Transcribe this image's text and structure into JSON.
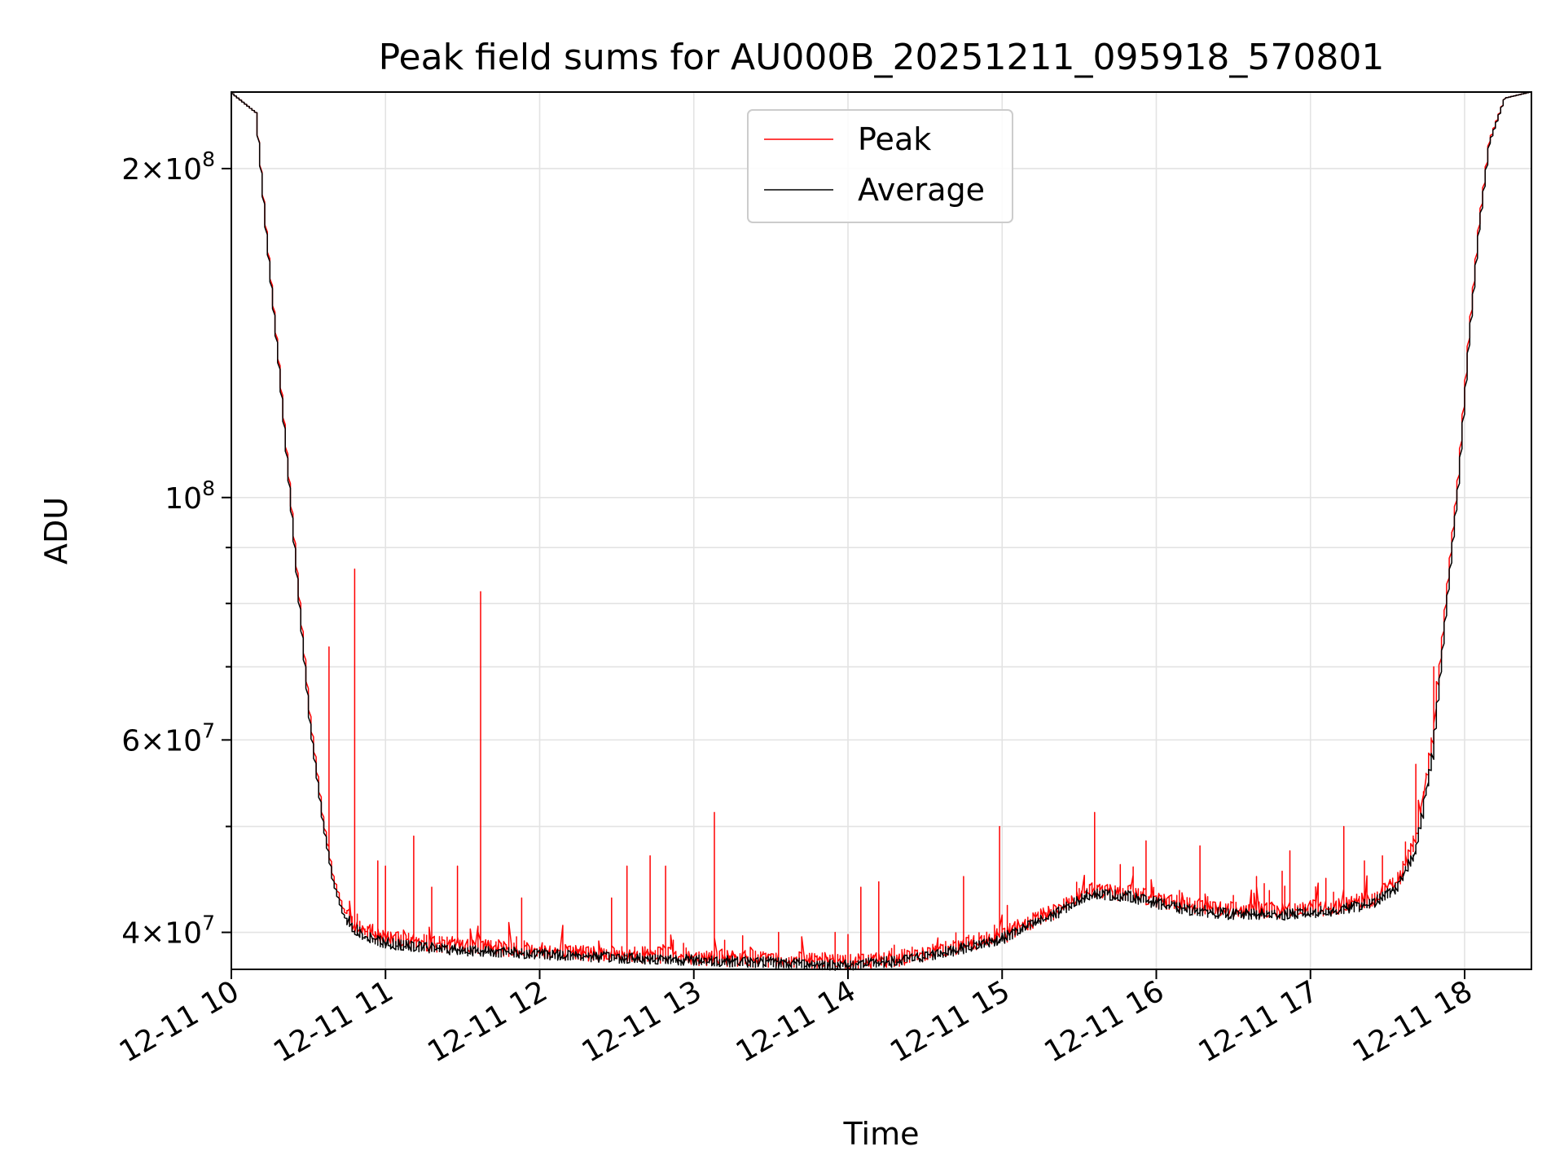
{
  "chart_data": {
    "type": "line",
    "title": "Peak field sums for AU000B_20251211_095918_570801",
    "xlabel": "Time",
    "ylabel": "ADU",
    "yscale": "log",
    "xlim": [
      "2025-12-11T10:00",
      "2025-12-11T18:26"
    ],
    "ylim": [
      37000000,
      235000000
    ],
    "grid": true,
    "legend": {
      "placement": "upper center"
    },
    "x_ticks": [
      {
        "t": "2025-12-11T10:00",
        "label": "12-11 10"
      },
      {
        "t": "2025-12-11T11:00",
        "label": "12-11 11"
      },
      {
        "t": "2025-12-11T12:00",
        "label": "12-11 12"
      },
      {
        "t": "2025-12-11T13:00",
        "label": "12-11 13"
      },
      {
        "t": "2025-12-11T14:00",
        "label": "12-11 14"
      },
      {
        "t": "2025-12-11T15:00",
        "label": "12-11 15"
      },
      {
        "t": "2025-12-11T16:00",
        "label": "12-11 16"
      },
      {
        "t": "2025-12-11T17:00",
        "label": "12-11 17"
      },
      {
        "t": "2025-12-11T18:00",
        "label": "12-11 18"
      }
    ],
    "y_ticks_major": [
      {
        "v": 40000000,
        "base": "4",
        "exp": "7"
      },
      {
        "v": 60000000,
        "base": "6",
        "exp": "7"
      },
      {
        "v": 100000000,
        "base": "",
        "exp": "8"
      },
      {
        "v": 200000000,
        "base": "2",
        "exp": "8"
      }
    ],
    "y_ticks_minor": [
      50000000,
      70000000,
      80000000,
      90000000
    ],
    "series": [
      {
        "name": "Peak",
        "color": "#ff0000",
        "x": [
          "2025-12-11T10:00",
          "2025-12-11T10:10",
          "2025-12-11T10:14",
          "2025-12-11T10:19",
          "2025-12-11T10:23",
          "2025-12-11T10:27",
          "2025-12-11T10:31",
          "2025-12-11T10:36",
          "2025-12-11T10:40",
          "2025-12-11T10:44",
          "2025-12-11T10:48",
          "2025-12-11T10:52",
          "2025-12-11T11:00",
          "2025-12-11T11:10",
          "2025-12-11T11:30",
          "2025-12-11T12:00",
          "2025-12-11T12:30",
          "2025-12-11T13:00",
          "2025-12-11T13:30",
          "2025-12-11T14:00",
          "2025-12-11T14:20",
          "2025-12-11T14:40",
          "2025-12-11T15:00",
          "2025-12-11T15:20",
          "2025-12-11T15:35",
          "2025-12-11T15:50",
          "2025-12-11T16:10",
          "2025-12-11T16:30",
          "2025-12-11T16:50",
          "2025-12-11T17:10",
          "2025-12-11T17:25",
          "2025-12-11T17:35",
          "2025-12-11T17:42",
          "2025-12-11T17:48",
          "2025-12-11T17:53",
          "2025-12-11T17:58",
          "2025-12-11T18:02",
          "2025-12-11T18:06",
          "2025-12-11T18:10",
          "2025-12-11T18:16",
          "2025-12-11T18:26"
        ],
        "y": [
          235000000,
          225000000,
          175000000,
          132000000,
          103000000,
          80000000,
          63000000,
          51000000,
          45000000,
          42000000,
          40500000,
          40000000,
          39300000,
          39000000,
          38700000,
          38300000,
          38000000,
          37800000,
          37600000,
          37400000,
          37700000,
          38500000,
          39500000,
          41500000,
          43500000,
          43200000,
          42200000,
          41700000,
          41700000,
          42000000,
          42700000,
          44500000,
          49000000,
          60000000,
          80000000,
          105000000,
          140000000,
          178000000,
          212000000,
          232000000,
          235000000
        ],
        "spikes": [
          {
            "t": "2025-12-11T10:38",
            "v": 73000000
          },
          {
            "t": "2025-12-11T10:48",
            "v": 86000000
          },
          {
            "t": "2025-12-11T10:57",
            "v": 46500000
          },
          {
            "t": "2025-12-11T11:00",
            "v": 46000000
          },
          {
            "t": "2025-12-11T11:11",
            "v": 49000000
          },
          {
            "t": "2025-12-11T11:18",
            "v": 44000000
          },
          {
            "t": "2025-12-11T11:28",
            "v": 46000000
          },
          {
            "t": "2025-12-11T11:37",
            "v": 82000000
          },
          {
            "t": "2025-12-11T11:53",
            "v": 43000000
          },
          {
            "t": "2025-12-11T12:28",
            "v": 43000000
          },
          {
            "t": "2025-12-11T12:34",
            "v": 46000000
          },
          {
            "t": "2025-12-11T12:43",
            "v": 47000000
          },
          {
            "t": "2025-12-11T12:49",
            "v": 46000000
          },
          {
            "t": "2025-12-11T13:08",
            "v": 51500000
          },
          {
            "t": "2025-12-11T13:33",
            "v": 40000000
          },
          {
            "t": "2025-12-11T13:55",
            "v": 40000000
          },
          {
            "t": "2025-12-11T14:05",
            "v": 44000000
          },
          {
            "t": "2025-12-11T14:12",
            "v": 44500000
          },
          {
            "t": "2025-12-11T14:45",
            "v": 45000000
          },
          {
            "t": "2025-12-11T14:59",
            "v": 50000000
          },
          {
            "t": "2025-12-11T15:36",
            "v": 51500000
          },
          {
            "t": "2025-12-11T15:56",
            "v": 48500000
          },
          {
            "t": "2025-12-11T16:17",
            "v": 48000000
          },
          {
            "t": "2025-12-11T16:39",
            "v": 45000000
          },
          {
            "t": "2025-12-11T16:49",
            "v": 45500000
          },
          {
            "t": "2025-12-11T16:52",
            "v": 47500000
          },
          {
            "t": "2025-12-11T17:13",
            "v": 50000000
          },
          {
            "t": "2025-12-11T17:21",
            "v": 46500000
          },
          {
            "t": "2025-12-11T17:28",
            "v": 47000000
          },
          {
            "t": "2025-12-11T17:41",
            "v": 57000000
          },
          {
            "t": "2025-12-11T17:48",
            "v": 70000000
          }
        ]
      },
      {
        "name": "Average",
        "color": "#000000",
        "x": [
          "2025-12-11T10:00",
          "2025-12-11T10:10",
          "2025-12-11T10:14",
          "2025-12-11T10:19",
          "2025-12-11T10:23",
          "2025-12-11T10:27",
          "2025-12-11T10:31",
          "2025-12-11T10:36",
          "2025-12-11T10:40",
          "2025-12-11T10:44",
          "2025-12-11T10:48",
          "2025-12-11T10:52",
          "2025-12-11T11:00",
          "2025-12-11T11:10",
          "2025-12-11T11:30",
          "2025-12-11T12:00",
          "2025-12-11T12:30",
          "2025-12-11T13:00",
          "2025-12-11T13:30",
          "2025-12-11T14:00",
          "2025-12-11T14:20",
          "2025-12-11T14:40",
          "2025-12-11T15:00",
          "2025-12-11T15:20",
          "2025-12-11T15:35",
          "2025-12-11T15:50",
          "2025-12-11T16:10",
          "2025-12-11T16:30",
          "2025-12-11T16:50",
          "2025-12-11T17:10",
          "2025-12-11T17:25",
          "2025-12-11T17:35",
          "2025-12-11T17:42",
          "2025-12-11T17:48",
          "2025-12-11T17:53",
          "2025-12-11T17:58",
          "2025-12-11T18:02",
          "2025-12-11T18:06",
          "2025-12-11T18:10",
          "2025-12-11T18:16",
          "2025-12-11T18:26"
        ],
        "y": [
          235000000,
          225000000,
          174000000,
          131000000,
          102000000,
          79000000,
          62000000,
          50500000,
          44500000,
          41500000,
          40200000,
          39600000,
          39000000,
          38700000,
          38400000,
          38100000,
          37800000,
          37600000,
          37400000,
          37200000,
          37500000,
          38300000,
          39300000,
          41300000,
          43300000,
          43000000,
          41900000,
          41400000,
          41400000,
          41700000,
          42400000,
          44000000,
          48000000,
          58000000,
          78000000,
          103000000,
          138000000,
          176000000,
          211000000,
          232000000,
          235000000
        ]
      }
    ]
  }
}
